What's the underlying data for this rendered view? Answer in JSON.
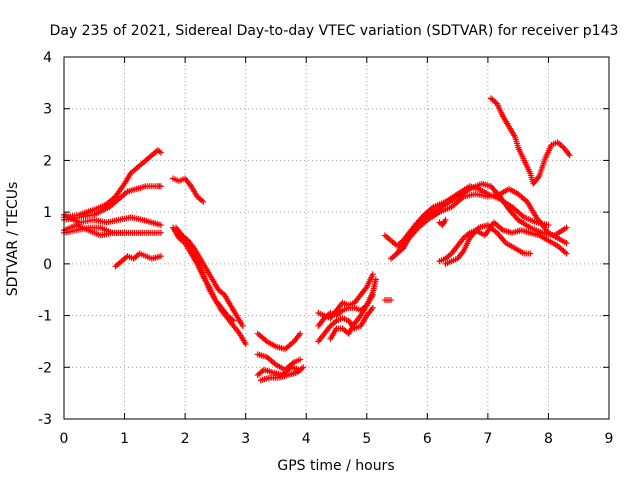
{
  "chart_data": {
    "type": "scatter",
    "title": "Day 235 of 2021, Sidereal Day-to-day VTEC variation (SDTVAR) for receiver p143",
    "xlabel": "GPS time / hours",
    "ylabel": "SDTVAR / TECUs",
    "xlim": [
      0,
      9
    ],
    "ylim": [
      -3,
      4
    ],
    "xticks": [
      "0",
      "1",
      "2",
      "3",
      "4",
      "5",
      "6",
      "7",
      "8",
      "9"
    ],
    "yticks": [
      "-3",
      "-2",
      "-1",
      "0",
      "1",
      "2",
      "3",
      "4"
    ],
    "grid": true,
    "marker": "+",
    "color": "#ff0000",
    "series": [
      {
        "segments": [
          [
            [
              0.0,
              0.9
            ],
            [
              0.25,
              0.95
            ],
            [
              0.5,
              1.05
            ],
            [
              0.7,
              1.15
            ],
            [
              0.85,
              1.3
            ],
            [
              1.0,
              1.55
            ],
            [
              1.1,
              1.75
            ],
            [
              1.25,
              1.9
            ],
            [
              1.4,
              2.05
            ],
            [
              1.55,
              2.2
            ],
            [
              1.6,
              2.15
            ]
          ],
          [
            [
              0.0,
              0.85
            ],
            [
              0.25,
              0.9
            ],
            [
              0.5,
              0.95
            ],
            [
              0.75,
              1.1
            ],
            [
              0.9,
              1.25
            ],
            [
              1.05,
              1.4
            ],
            [
              1.2,
              1.45
            ],
            [
              1.35,
              1.5
            ],
            [
              1.55,
              1.5
            ],
            [
              1.6,
              1.5
            ]
          ],
          [
            [
              0.0,
              0.95
            ],
            [
              0.25,
              0.8
            ],
            [
              0.5,
              0.85
            ],
            [
              0.7,
              0.8
            ],
            [
              0.9,
              0.85
            ],
            [
              1.1,
              0.9
            ],
            [
              1.3,
              0.85
            ],
            [
              1.45,
              0.8
            ],
            [
              1.6,
              0.75
            ]
          ],
          [
            [
              0.0,
              0.6
            ],
            [
              0.2,
              0.65
            ],
            [
              0.4,
              0.7
            ],
            [
              0.6,
              0.7
            ],
            [
              0.8,
              0.6
            ],
            [
              1.0,
              0.6
            ],
            [
              1.2,
              0.6
            ],
            [
              1.4,
              0.6
            ],
            [
              1.6,
              0.6
            ]
          ],
          [
            [
              0.0,
              0.65
            ],
            [
              0.2,
              0.75
            ],
            [
              0.4,
              0.65
            ],
            [
              0.6,
              0.55
            ],
            [
              0.8,
              0.6
            ],
            [
              1.0,
              0.6
            ]
          ],
          [
            [
              0.85,
              -0.05
            ],
            [
              0.95,
              0.05
            ],
            [
              1.05,
              0.15
            ],
            [
              1.15,
              0.1
            ],
            [
              1.25,
              0.2
            ],
            [
              1.35,
              0.15
            ],
            [
              1.45,
              0.1
            ],
            [
              1.6,
              0.15
            ]
          ]
        ]
      },
      {
        "segments": [
          [
            [
              1.8,
              1.65
            ],
            [
              1.9,
              1.6
            ],
            [
              2.0,
              1.65
            ],
            [
              2.1,
              1.5
            ],
            [
              2.2,
              1.3
            ],
            [
              2.3,
              1.2
            ]
          ],
          [
            [
              1.85,
              0.7
            ],
            [
              1.95,
              0.55
            ],
            [
              2.05,
              0.45
            ],
            [
              2.15,
              0.3
            ],
            [
              2.25,
              0.1
            ],
            [
              2.35,
              -0.1
            ],
            [
              2.45,
              -0.3
            ],
            [
              2.55,
              -0.5
            ],
            [
              2.65,
              -0.6
            ],
            [
              2.75,
              -0.8
            ],
            [
              2.85,
              -1.0
            ],
            [
              2.95,
              -1.2
            ]
          ],
          [
            [
              1.9,
              0.6
            ],
            [
              2.0,
              0.45
            ],
            [
              2.1,
              0.3
            ],
            [
              2.2,
              0.05
            ],
            [
              2.3,
              -0.2
            ],
            [
              2.4,
              -0.5
            ],
            [
              2.5,
              -0.7
            ],
            [
              2.6,
              -0.9
            ],
            [
              2.7,
              -1.05
            ],
            [
              2.8,
              -1.2
            ],
            [
              2.9,
              -1.35
            ],
            [
              3.0,
              -1.55
            ]
          ],
          [
            [
              1.8,
              0.7
            ],
            [
              1.9,
              0.5
            ],
            [
              2.0,
              0.4
            ],
            [
              2.1,
              0.2
            ],
            [
              2.2,
              0.0
            ],
            [
              2.3,
              -0.25
            ],
            [
              2.4,
              -0.45
            ],
            [
              2.5,
              -0.7
            ],
            [
              2.6,
              -0.85
            ],
            [
              2.7,
              -1.0
            ],
            [
              2.8,
              -1.1
            ]
          ]
        ]
      },
      {
        "segments": [
          [
            [
              3.2,
              -1.35
            ],
            [
              3.35,
              -1.5
            ],
            [
              3.5,
              -1.6
            ],
            [
              3.65,
              -1.65
            ],
            [
              3.8,
              -1.5
            ],
            [
              3.9,
              -1.35
            ]
          ],
          [
            [
              3.2,
              -1.75
            ],
            [
              3.35,
              -1.8
            ],
            [
              3.5,
              -1.95
            ],
            [
              3.65,
              -2.05
            ],
            [
              3.8,
              -1.9
            ],
            [
              3.9,
              -1.85
            ]
          ],
          [
            [
              3.2,
              -2.15
            ],
            [
              3.3,
              -2.05
            ],
            [
              3.45,
              -2.1
            ],
            [
              3.6,
              -2.15
            ],
            [
              3.75,
              -2.0
            ],
            [
              3.9,
              -2.05
            ]
          ],
          [
            [
              3.25,
              -2.25
            ],
            [
              3.4,
              -2.2
            ],
            [
              3.55,
              -2.2
            ],
            [
              3.7,
              -2.15
            ],
            [
              3.85,
              -2.1
            ],
            [
              3.95,
              -2.0
            ]
          ]
        ]
      },
      {
        "segments": [
          [
            [
              4.2,
              -1.5
            ],
            [
              4.3,
              -1.35
            ],
            [
              4.4,
              -1.2
            ],
            [
              4.5,
              -1.1
            ],
            [
              4.6,
              -1.05
            ],
            [
              4.7,
              -1.1
            ],
            [
              4.8,
              -1.25
            ],
            [
              4.9,
              -1.2
            ],
            [
              5.0,
              -1.0
            ],
            [
              5.1,
              -0.85
            ]
          ],
          [
            [
              4.2,
              -1.2
            ],
            [
              4.3,
              -1.05
            ],
            [
              4.4,
              -0.95
            ],
            [
              4.5,
              -1.0
            ],
            [
              4.6,
              -0.9
            ],
            [
              4.7,
              -0.85
            ],
            [
              4.8,
              -0.85
            ],
            [
              4.9,
              -0.9
            ],
            [
              5.0,
              -0.8
            ],
            [
              5.1,
              -0.6
            ]
          ],
          [
            [
              4.4,
              -1.45
            ],
            [
              4.5,
              -1.25
            ],
            [
              4.6,
              -1.25
            ],
            [
              4.7,
              -1.35
            ],
            [
              4.8,
              -1.15
            ],
            [
              4.9,
              -1.0
            ],
            [
              5.0,
              -0.8
            ],
            [
              5.1,
              -0.55
            ],
            [
              5.15,
              -0.3
            ]
          ],
          [
            [
              4.2,
              -0.95
            ],
            [
              4.3,
              -1.0
            ],
            [
              4.4,
              -1.05
            ],
            [
              4.5,
              -0.9
            ],
            [
              4.6,
              -0.75
            ],
            [
              4.7,
              -0.8
            ],
            [
              4.8,
              -0.75
            ],
            [
              4.9,
              -0.6
            ],
            [
              5.0,
              -0.45
            ],
            [
              5.1,
              -0.2
            ]
          ]
        ]
      },
      {
        "segments": [
          [
            [
              5.3,
              -0.7
            ],
            [
              5.4,
              -0.7
            ]
          ],
          [
            [
              5.3,
              0.55
            ],
            [
              5.4,
              0.45
            ],
            [
              5.5,
              0.35
            ],
            [
              5.6,
              0.45
            ],
            [
              5.7,
              0.6
            ],
            [
              5.8,
              0.75
            ],
            [
              5.95,
              0.95
            ],
            [
              6.1,
              1.1
            ],
            [
              6.3,
              1.2
            ],
            [
              6.5,
              1.35
            ],
            [
              6.7,
              1.5
            ],
            [
              6.85,
              1.45
            ],
            [
              7.0,
              1.35
            ],
            [
              7.2,
              1.25
            ],
            [
              7.4,
              1.1
            ],
            [
              7.6,
              0.9
            ],
            [
              7.8,
              0.8
            ],
            [
              8.0,
              0.75
            ]
          ],
          [
            [
              5.4,
              0.1
            ],
            [
              5.5,
              0.2
            ],
            [
              5.6,
              0.3
            ],
            [
              5.7,
              0.5
            ],
            [
              5.85,
              0.7
            ],
            [
              6.0,
              0.85
            ],
            [
              6.2,
              1.0
            ],
            [
              6.4,
              1.1
            ],
            [
              6.6,
              1.3
            ],
            [
              6.8,
              1.35
            ],
            [
              7.0,
              1.3
            ],
            [
              7.2,
              1.35
            ],
            [
              7.35,
              1.45
            ],
            [
              7.5,
              1.35
            ],
            [
              7.65,
              1.2
            ],
            [
              7.8,
              0.9
            ],
            [
              8.0,
              0.6
            ],
            [
              8.15,
              0.5
            ],
            [
              8.3,
              0.4
            ]
          ],
          [
            [
              5.5,
              0.2
            ],
            [
              5.7,
              0.55
            ],
            [
              5.9,
              0.85
            ],
            [
              6.1,
              1.0
            ],
            [
              6.3,
              1.15
            ],
            [
              6.5,
              1.3
            ],
            [
              6.7,
              1.45
            ],
            [
              6.9,
              1.55
            ],
            [
              7.05,
              1.5
            ],
            [
              7.2,
              1.3
            ],
            [
              7.35,
              1.05
            ],
            [
              7.5,
              0.85
            ],
            [
              7.7,
              0.7
            ],
            [
              7.9,
              0.6
            ],
            [
              8.1,
              0.55
            ],
            [
              8.3,
              0.7
            ]
          ],
          [
            [
              6.2,
              0.8
            ],
            [
              6.25,
              0.75
            ],
            [
              6.3,
              0.85
            ]
          ],
          [
            [
              6.2,
              0.05
            ],
            [
              6.3,
              0.1
            ],
            [
              6.4,
              0.2
            ],
            [
              6.5,
              0.35
            ],
            [
              6.6,
              0.5
            ],
            [
              6.7,
              0.6
            ],
            [
              6.8,
              0.65
            ],
            [
              6.95,
              0.55
            ],
            [
              7.1,
              0.8
            ],
            [
              7.25,
              0.65
            ],
            [
              7.4,
              0.6
            ],
            [
              7.55,
              0.65
            ],
            [
              7.7,
              0.6
            ],
            [
              7.85,
              0.55
            ],
            [
              8.0,
              0.45
            ],
            [
              8.15,
              0.35
            ],
            [
              8.3,
              0.2
            ]
          ],
          [
            [
              6.3,
              0.0
            ],
            [
              6.4,
              0.05
            ],
            [
              6.5,
              0.1
            ],
            [
              6.6,
              0.25
            ],
            [
              6.7,
              0.5
            ],
            [
              6.85,
              0.7
            ],
            [
              7.0,
              0.75
            ],
            [
              7.15,
              0.6
            ],
            [
              7.3,
              0.4
            ],
            [
              7.45,
              0.3
            ],
            [
              7.6,
              0.2
            ],
            [
              7.7,
              0.2
            ]
          ],
          [
            [
              7.05,
              3.2
            ],
            [
              7.15,
              3.1
            ],
            [
              7.25,
              2.85
            ],
            [
              7.35,
              2.65
            ],
            [
              7.45,
              2.45
            ],
            [
              7.5,
              2.25
            ],
            [
              7.6,
              2.0
            ],
            [
              7.7,
              1.75
            ],
            [
              7.75,
              1.55
            ],
            [
              7.85,
              1.7
            ],
            [
              7.95,
              2.05
            ],
            [
              8.05,
              2.3
            ],
            [
              8.15,
              2.35
            ],
            [
              8.25,
              2.25
            ],
            [
              8.35,
              2.1
            ]
          ]
        ]
      }
    ]
  }
}
